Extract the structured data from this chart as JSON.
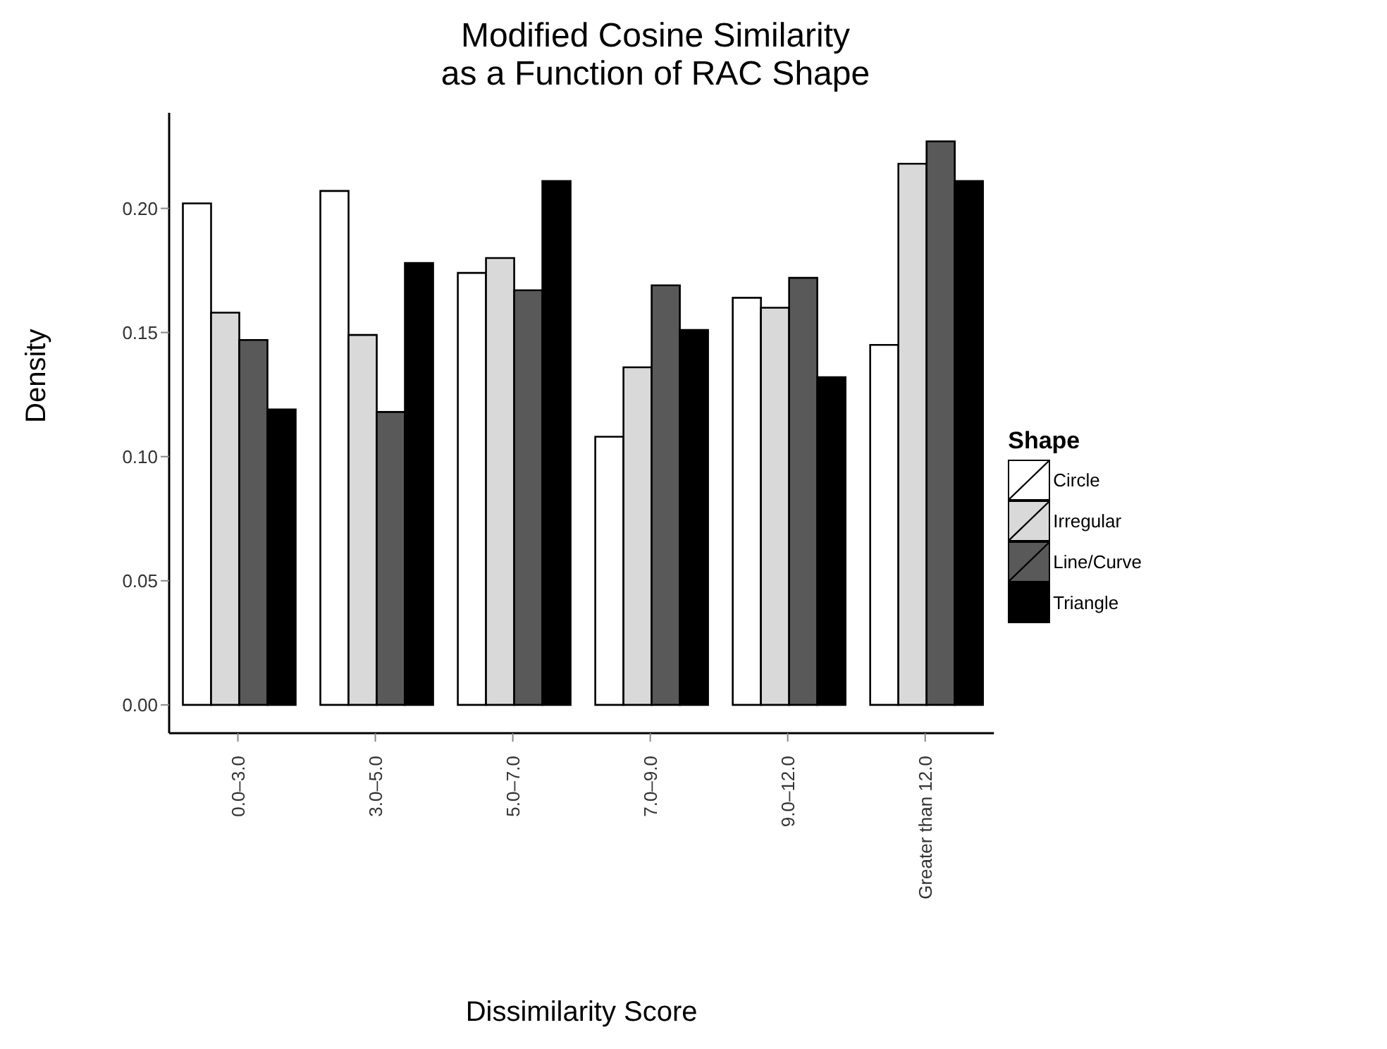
{
  "chart_data": {
    "type": "bar",
    "title": "Modified Cosine Similarity\nas a Function of RAC Shape",
    "xlabel": "Dissimilarity Score",
    "ylabel": "Density",
    "legend_title": "Shape",
    "legend": "right",
    "categories": [
      "0.0–3.0",
      "3.0–5.0",
      "5.0–7.0",
      "7.0–9.0",
      "9.0–12.0",
      "Greater than 12.0"
    ],
    "series": [
      {
        "name": "Circle",
        "color": "#ffffff",
        "values": [
          0.202,
          0.207,
          0.174,
          0.108,
          0.164,
          0.145
        ]
      },
      {
        "name": "Irregular",
        "color": "#d9d9d9",
        "values": [
          0.158,
          0.149,
          0.18,
          0.136,
          0.16,
          0.218
        ]
      },
      {
        "name": "Line/Curve",
        "color": "#595959",
        "values": [
          0.147,
          0.118,
          0.167,
          0.169,
          0.172,
          0.227
        ]
      },
      {
        "name": "Triangle",
        "color": "#000000",
        "values": [
          0.119,
          0.178,
          0.211,
          0.151,
          0.132,
          0.211
        ]
      }
    ],
    "ylim": [
      -0.0114,
      0.2385
    ],
    "yticks": [
      {
        "value": 0,
        "label": "0.00"
      },
      {
        "value": 0.05,
        "label": "0.05"
      },
      {
        "value": 0.1,
        "label": "0.10"
      },
      {
        "value": 0.15,
        "label": "0.15"
      },
      {
        "value": 0.2,
        "label": "0.20"
      }
    ]
  }
}
